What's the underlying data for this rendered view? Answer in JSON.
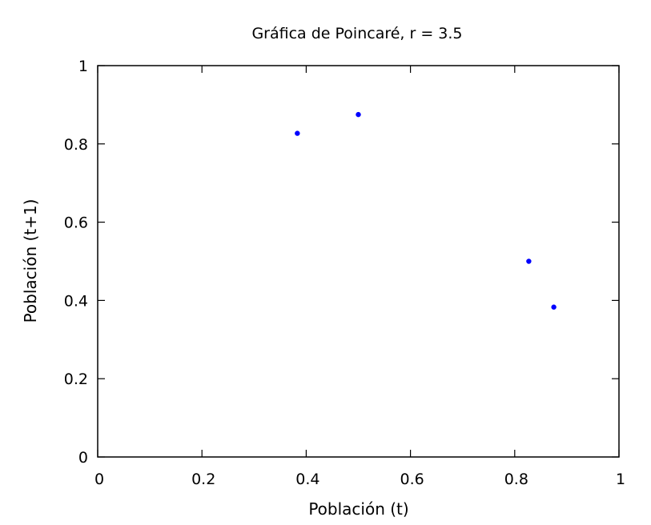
{
  "chart_data": {
    "type": "scatter",
    "title": "Gráfica de Poincaré, r = 3.5",
    "xlabel": "Población (t)",
    "ylabel": "Población (t+1)",
    "xlim": [
      0,
      1
    ],
    "ylim": [
      0,
      1
    ],
    "x_ticks": [
      0,
      0.2,
      0.4,
      0.6,
      0.8,
      1
    ],
    "y_ticks": [
      0,
      0.2,
      0.4,
      0.6,
      0.8,
      1
    ],
    "x_tick_labels": [
      "0",
      "0.2",
      "0.4",
      "0.6",
      "0.8",
      "1"
    ],
    "y_tick_labels": [
      "0",
      "0.2",
      "0.4",
      "0.6",
      "0.8",
      "1"
    ],
    "grid": false,
    "series": [
      {
        "color": "#0000ff",
        "x": [
          0.383,
          0.5,
          0.827,
          0.875
        ],
        "y": [
          0.827,
          0.875,
          0.5,
          0.383
        ]
      }
    ]
  }
}
